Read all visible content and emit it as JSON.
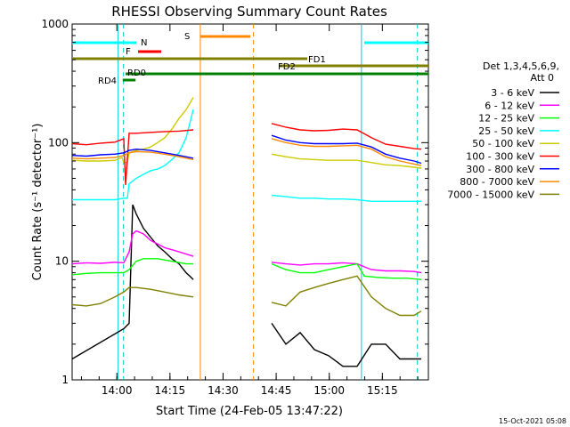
{
  "chart_data": {
    "type": "line",
    "title": "RHESSI Observing Summary Count Rates",
    "xlabel": "Start Time (24-Feb-05 13:47:22)",
    "ylabel": "Count Rate (s⁻¹ detector⁻¹)",
    "y_scale": "log",
    "ylim": [
      1,
      1000
    ],
    "xlim": [
      "13:47:22",
      "15:28:00"
    ],
    "x_ticks": [
      "14:00",
      "14:15",
      "14:30",
      "14:45",
      "15:00",
      "15:15"
    ],
    "y_ticks": [
      "1",
      "10",
      "100",
      "1000"
    ],
    "legend_title": "Det 1,3,4,5,6,9,",
    "legend_subtitle": "Att 0",
    "legend_position": "right",
    "footer": "15-Oct-2021 05:08",
    "flag_labels": {
      "N": "N",
      "F": "F",
      "S": "S",
      "FD1": "FD1",
      "FD2": "FD2",
      "RD0": "RD0",
      "RD4": "RD4"
    },
    "series": [
      {
        "name": "3 - 6 keV",
        "color": "#000000",
        "x": [
          0,
          14.5,
          16,
          17,
          18,
          20,
          22,
          24,
          26,
          28,
          30,
          32,
          33,
          34
        ],
        "values": [
          1.5,
          2.7,
          3.0,
          30,
          25,
          19,
          16,
          13.5,
          12,
          10.5,
          9.5,
          8,
          7.5,
          7
        ],
        "x2": [
          56,
          60,
          64,
          68,
          72,
          76,
          80,
          84,
          88,
          92,
          96,
          98
        ],
        "values2": [
          3.0,
          2.0,
          2.5,
          1.8,
          1.6,
          1.3,
          1.3,
          2.0,
          2.0,
          1.5,
          1.5,
          1.5
        ]
      },
      {
        "name": "6 - 12 keV",
        "color": "#ff00ff",
        "x": [
          0,
          4,
          8,
          12,
          14.5,
          16,
          17,
          18,
          20,
          22,
          24,
          26,
          28,
          30,
          32,
          34
        ],
        "values": [
          9.5,
          9.7,
          9.6,
          9.8,
          9.7,
          12,
          17,
          18,
          17,
          15,
          14,
          13,
          12.5,
          12,
          11.5,
          11
        ],
        "x2": [
          56,
          60,
          64,
          68,
          72,
          76,
          80,
          84,
          88,
          92,
          96,
          98
        ],
        "values2": [
          9.8,
          9.5,
          9.3,
          9.5,
          9.5,
          9.7,
          9.5,
          8.5,
          8.3,
          8.3,
          8.2,
          8.0
        ]
      },
      {
        "name": "12 - 25 keV",
        "color": "#00ff00",
        "x": [
          0,
          4,
          8,
          12,
          14.5,
          16,
          18,
          20,
          24,
          28,
          32,
          34
        ],
        "values": [
          7.7,
          7.9,
          8.0,
          8.0,
          8.0,
          8.5,
          10,
          10.5,
          10.5,
          10,
          9.5,
          9.5
        ],
        "x2": [
          56,
          60,
          64,
          68,
          72,
          76,
          80,
          82,
          86,
          90,
          94,
          98
        ],
        "values2": [
          9.5,
          8.5,
          8.0,
          8.0,
          8.5,
          9.0,
          9.5,
          7.5,
          7.3,
          7.2,
          7.2,
          7.0
        ]
      },
      {
        "name": "25 - 50 keV",
        "color": "#00ffff",
        "x": [
          0,
          4,
          8,
          12,
          14.5,
          15.5,
          16,
          18,
          20,
          22,
          24,
          26,
          28,
          30,
          32,
          34
        ],
        "values": [
          33,
          33,
          33,
          33,
          34,
          34,
          45,
          50,
          54,
          58,
          60,
          64,
          72,
          82,
          110,
          190
        ],
        "x2": [
          56,
          60,
          64,
          68,
          72,
          76,
          80,
          84,
          88,
          92,
          96,
          98
        ],
        "values2": [
          36,
          35,
          34,
          34,
          33.5,
          33.5,
          33,
          32,
          32,
          32,
          32,
          32
        ]
      },
      {
        "name": "50 - 100 keV",
        "color": "#cccc00",
        "x": [
          0,
          4,
          8,
          12,
          14,
          14.5,
          15.5,
          16,
          18,
          20,
          22,
          24,
          26,
          28,
          30,
          32,
          34
        ],
        "values": [
          71,
          70,
          70,
          71,
          75,
          68,
          68,
          82,
          86,
          88,
          92,
          100,
          110,
          130,
          160,
          190,
          240
        ],
        "x2": [
          56,
          60,
          64,
          68,
          72,
          76,
          80,
          84,
          88,
          92,
          96,
          98
        ],
        "values2": [
          80,
          76,
          73,
          72,
          71,
          71,
          71,
          68,
          65,
          64,
          62,
          61
        ]
      },
      {
        "name": "100 - 300 keV",
        "color": "#ff0000",
        "x": [
          0,
          4,
          8,
          12,
          14.5,
          15,
          16,
          18,
          22,
          26,
          30,
          34
        ],
        "values": [
          98,
          96,
          99,
          101,
          108,
          44,
          120,
          120,
          122,
          124,
          125,
          128
        ],
        "x2": [
          56,
          60,
          64,
          68,
          72,
          76,
          80,
          84,
          88,
          92,
          96,
          98
        ],
        "values2": [
          145,
          135,
          128,
          126,
          127,
          130,
          128,
          110,
          97,
          93,
          89,
          88
        ]
      },
      {
        "name": "300 - 800 keV",
        "color": "#0000ff",
        "x": [
          0,
          4,
          8,
          12,
          14.5,
          16,
          18,
          22,
          26,
          30,
          34
        ],
        "values": [
          78,
          77,
          79,
          80,
          82,
          86,
          88,
          86,
          82,
          78,
          74
        ],
        "x2": [
          56,
          60,
          64,
          68,
          72,
          76,
          80,
          84,
          88,
          92,
          96,
          98
        ],
        "values2": [
          115,
          105,
          100,
          98,
          98,
          98,
          99,
          92,
          80,
          74,
          70,
          67
        ]
      },
      {
        "name": "800 - 7000 keV",
        "color": "#ff8800",
        "x": [
          0,
          4,
          8,
          12,
          14.5,
          16,
          18,
          22,
          26,
          30,
          34
        ],
        "values": [
          74,
          73,
          74,
          75,
          78,
          82,
          84,
          83,
          80,
          76,
          72
        ],
        "x2": [
          56,
          60,
          64,
          68,
          72,
          76,
          80,
          84,
          88,
          92,
          96,
          98
        ],
        "values2": [
          108,
          100,
          95,
          93,
          93,
          94,
          95,
          88,
          76,
          70,
          66,
          64
        ]
      },
      {
        "name": "7000 - 15000 keV",
        "color": "#808000",
        "x": [
          0,
          4,
          8,
          12,
          14.5,
          16,
          18,
          22,
          26,
          30,
          34
        ],
        "values": [
          4.3,
          4.2,
          4.4,
          5.0,
          5.5,
          6.0,
          6.0,
          5.8,
          5.5,
          5.2,
          5.0
        ],
        "x2": [
          56,
          60,
          64,
          68,
          72,
          76,
          80,
          84,
          88,
          92,
          96,
          98
        ],
        "values2": [
          4.5,
          4.2,
          5.5,
          6.0,
          6.5,
          7.0,
          7.5,
          5.0,
          4.0,
          3.5,
          3.5,
          3.8
        ]
      }
    ]
  }
}
